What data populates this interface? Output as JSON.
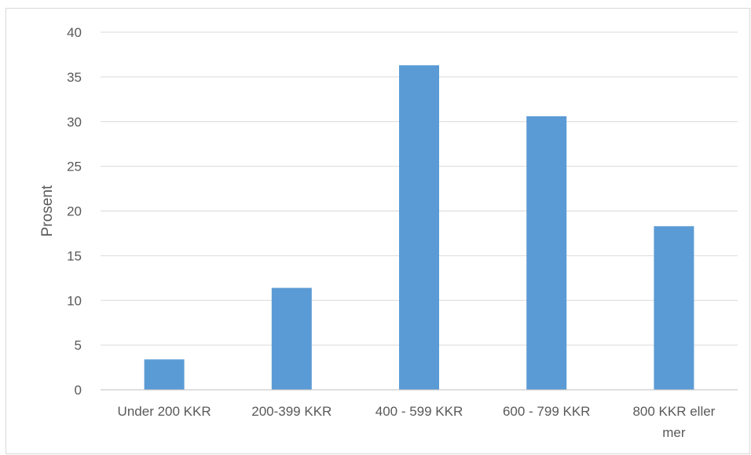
{
  "chart_data": {
    "type": "bar",
    "title": "",
    "xlabel": "",
    "ylabel": "Prosent",
    "categories": [
      [
        "Under 200 KKR"
      ],
      [
        "200-399 KKR"
      ],
      [
        "400 - 599 KKR"
      ],
      [
        "600 - 799 KKR"
      ],
      [
        "800 KKR eller",
        "mer"
      ]
    ],
    "values": [
      3.4,
      11.4,
      36.3,
      30.6,
      18.3
    ],
    "ylim": [
      0,
      40
    ],
    "yticks": [
      0,
      5,
      10,
      15,
      20,
      25,
      30,
      35,
      40
    ],
    "grid": true,
    "legend": "none",
    "colors": {
      "bar": "#5b9bd5",
      "grid": "#d9d9d9",
      "axis": "#bfbfbf",
      "text": "#595959"
    }
  }
}
